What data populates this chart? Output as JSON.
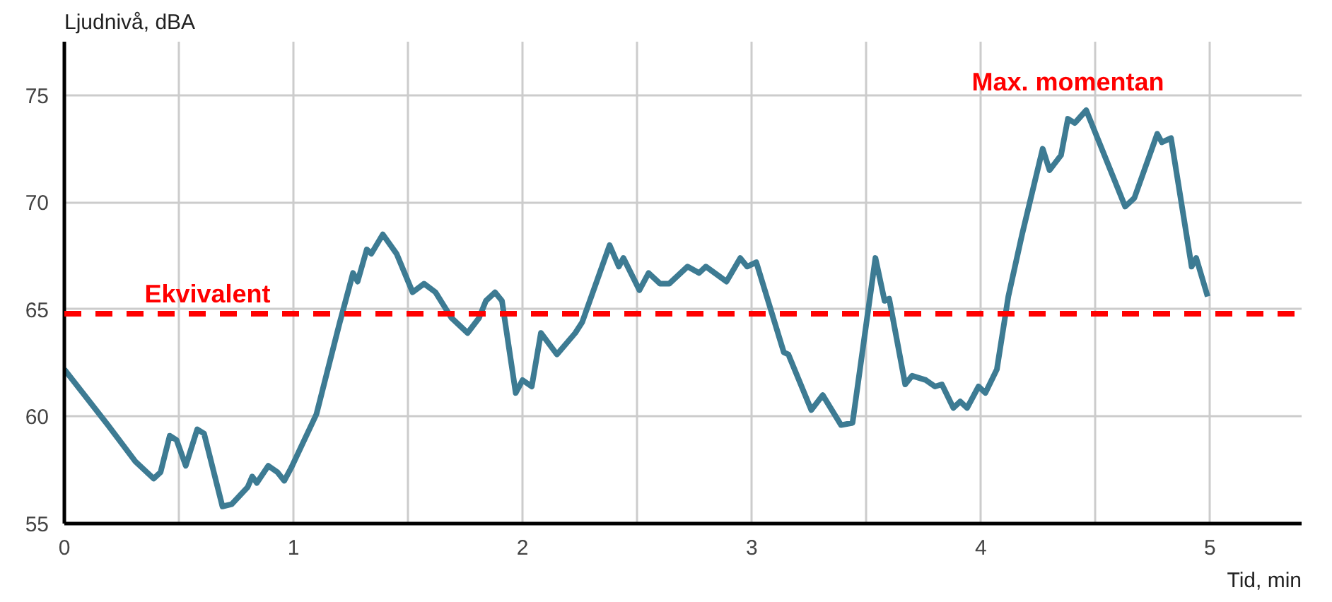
{
  "chart_data": {
    "type": "line",
    "ylabel": "Ljudnivå, dBA",
    "xlabel": "Tid, min",
    "x": [
      0,
      0.19,
      0.31,
      0.39,
      0.42,
      0.46,
      0.49,
      0.53,
      0.58,
      0.61,
      0.69,
      0.73,
      0.8,
      0.82,
      0.84,
      0.89,
      0.93,
      0.96,
      0.99,
      1.1,
      1.15,
      1.2,
      1.26,
      1.28,
      1.32,
      1.34,
      1.39,
      1.45,
      1.52,
      1.57,
      1.62,
      1.69,
      1.76,
      1.81,
      1.84,
      1.88,
      1.91,
      1.97,
      2.0,
      2.04,
      2.08,
      2.15,
      2.23,
      2.26,
      2.38,
      2.42,
      2.44,
      2.51,
      2.55,
      2.6,
      2.64,
      2.72,
      2.77,
      2.8,
      2.89,
      2.95,
      2.98,
      3.02,
      3.14,
      3.16,
      3.26,
      3.31,
      3.39,
      3.44,
      3.54,
      3.58,
      3.6,
      3.67,
      3.7,
      3.76,
      3.8,
      3.83,
      3.88,
      3.91,
      3.94,
      3.99,
      4.02,
      4.07,
      4.12,
      4.18,
      4.27,
      4.3,
      4.35,
      4.38,
      4.41,
      4.46,
      4.63,
      4.67,
      4.77,
      4.79,
      4.83,
      4.92,
      4.94,
      4.99
    ],
    "series": [
      {
        "color": "#3d7b93",
        "values": [
          62.2,
          59.6,
          57.9,
          57.1,
          57.4,
          59.1,
          58.9,
          57.7,
          59.4,
          59.2,
          55.8,
          55.9,
          56.7,
          57.2,
          56.9,
          57.7,
          57.4,
          57.0,
          57.6,
          60.1,
          62.2,
          64.3,
          66.7,
          66.3,
          67.8,
          67.6,
          68.5,
          67.6,
          65.8,
          66.2,
          65.8,
          64.6,
          63.9,
          64.6,
          65.4,
          65.8,
          65.4,
          61.1,
          61.7,
          61.4,
          63.9,
          62.9,
          63.9,
          64.4,
          68.0,
          67.0,
          67.4,
          65.9,
          66.7,
          66.2,
          66.2,
          67.0,
          66.7,
          67.0,
          66.3,
          67.4,
          67.0,
          67.2,
          63.0,
          62.9,
          60.3,
          61.0,
          59.6,
          59.7,
          67.4,
          65.4,
          65.5,
          61.5,
          61.9,
          61.7,
          61.4,
          61.5,
          60.4,
          60.7,
          60.4,
          61.4,
          61.1,
          62.2,
          65.6,
          68.5,
          72.5,
          71.5,
          72.2,
          73.9,
          73.7,
          74.3,
          69.8,
          70.2,
          73.2,
          72.8,
          73.0,
          67.0,
          67.4,
          65.6
        ]
      }
    ],
    "xlim": [
      0,
      5.4
    ],
    "ylim": [
      55,
      77.5
    ],
    "xticks": [
      0,
      {
        "value": 0.5,
        "label": null
      },
      1,
      {
        "value": 1.5,
        "label": null
      },
      2,
      {
        "value": 2.5,
        "label": null
      },
      3,
      {
        "value": 3.5,
        "label": null
      },
      4,
      {
        "value": 4.5,
        "label": null
      },
      5
    ],
    "yticks": [
      55,
      60,
      65,
      70,
      75
    ],
    "grid": true,
    "marker": "none",
    "line_style": "solid",
    "ref_lines": [
      {
        "axis": "y",
        "value": 64.8,
        "label": "Ekvivalent",
        "color": "#ff0000",
        "line_style": "dashed"
      }
    ],
    "annotations": [
      {
        "text": "Max. momentan",
        "x": 4.46,
        "y": 74.3
      }
    ]
  }
}
